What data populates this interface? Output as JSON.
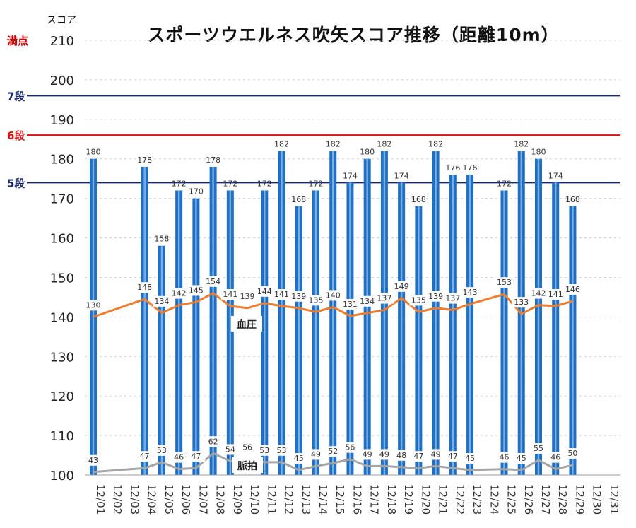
{
  "chart_data": {
    "type": "bar",
    "title": "スポーツウエルネス吹矢スコア推移（距離10m）",
    "ylabel": "スコア",
    "ylim": [
      100,
      210
    ],
    "yticks": [
      100,
      110,
      120,
      130,
      140,
      150,
      160,
      170,
      180,
      190,
      200,
      210
    ],
    "categories": [
      "12/01",
      "12/02",
      "12/03",
      "12/04",
      "12/05",
      "12/06",
      "12/07",
      "12/08",
      "12/09",
      "12/10",
      "12/11",
      "12/12",
      "12/13",
      "12/14",
      "12/15",
      "12/16",
      "12/17",
      "12/18",
      "12/19",
      "12/20",
      "12/21",
      "12/22",
      "12/23",
      "12/24",
      "12/25",
      "12/26",
      "12/27",
      "12/28",
      "12/29",
      "12/30",
      "12/31"
    ],
    "series": [
      {
        "values": [
          180,
          null,
          null,
          178,
          158,
          172,
          170,
          178,
          172,
          null,
          172,
          182,
          168,
          172,
          182,
          174,
          180,
          182,
          174,
          168,
          182,
          176,
          176,
          null,
          172,
          182,
          180,
          174,
          168,
          null,
          null
        ]
      },
      {
        "name": "血圧",
        "values": [
          130,
          null,
          null,
          148,
          134,
          142,
          145,
          154,
          141,
          139,
          144,
          141,
          139,
          135,
          140,
          131,
          134,
          137,
          149,
          135,
          139,
          137,
          143,
          null,
          153,
          133,
          142,
          141,
          146,
          null,
          null
        ]
      },
      {
        "name": "脈拍",
        "values": [
          43,
          null,
          null,
          47,
          53,
          46,
          47,
          62,
          54,
          56,
          53,
          53,
          45,
          49,
          52,
          56,
          49,
          49,
          48,
          47,
          49,
          47,
          45,
          null,
          46,
          45,
          55,
          46,
          50,
          null,
          null
        ]
      }
    ],
    "reference_lines": [
      {
        "label": "満点",
        "value": 210,
        "color": "#cc0000"
      },
      {
        "label": "7段",
        "value": 196,
        "color": "#1a2a6c"
      },
      {
        "label": "6段",
        "value": 186,
        "color": "#dd1111"
      },
      {
        "label": "5段",
        "value": 174,
        "color": "#1a2a6c"
      }
    ],
    "colors": {
      "bar": "#1f6fc4",
      "bp": "#ed7d31",
      "pulse": "#a5a5a5"
    }
  }
}
